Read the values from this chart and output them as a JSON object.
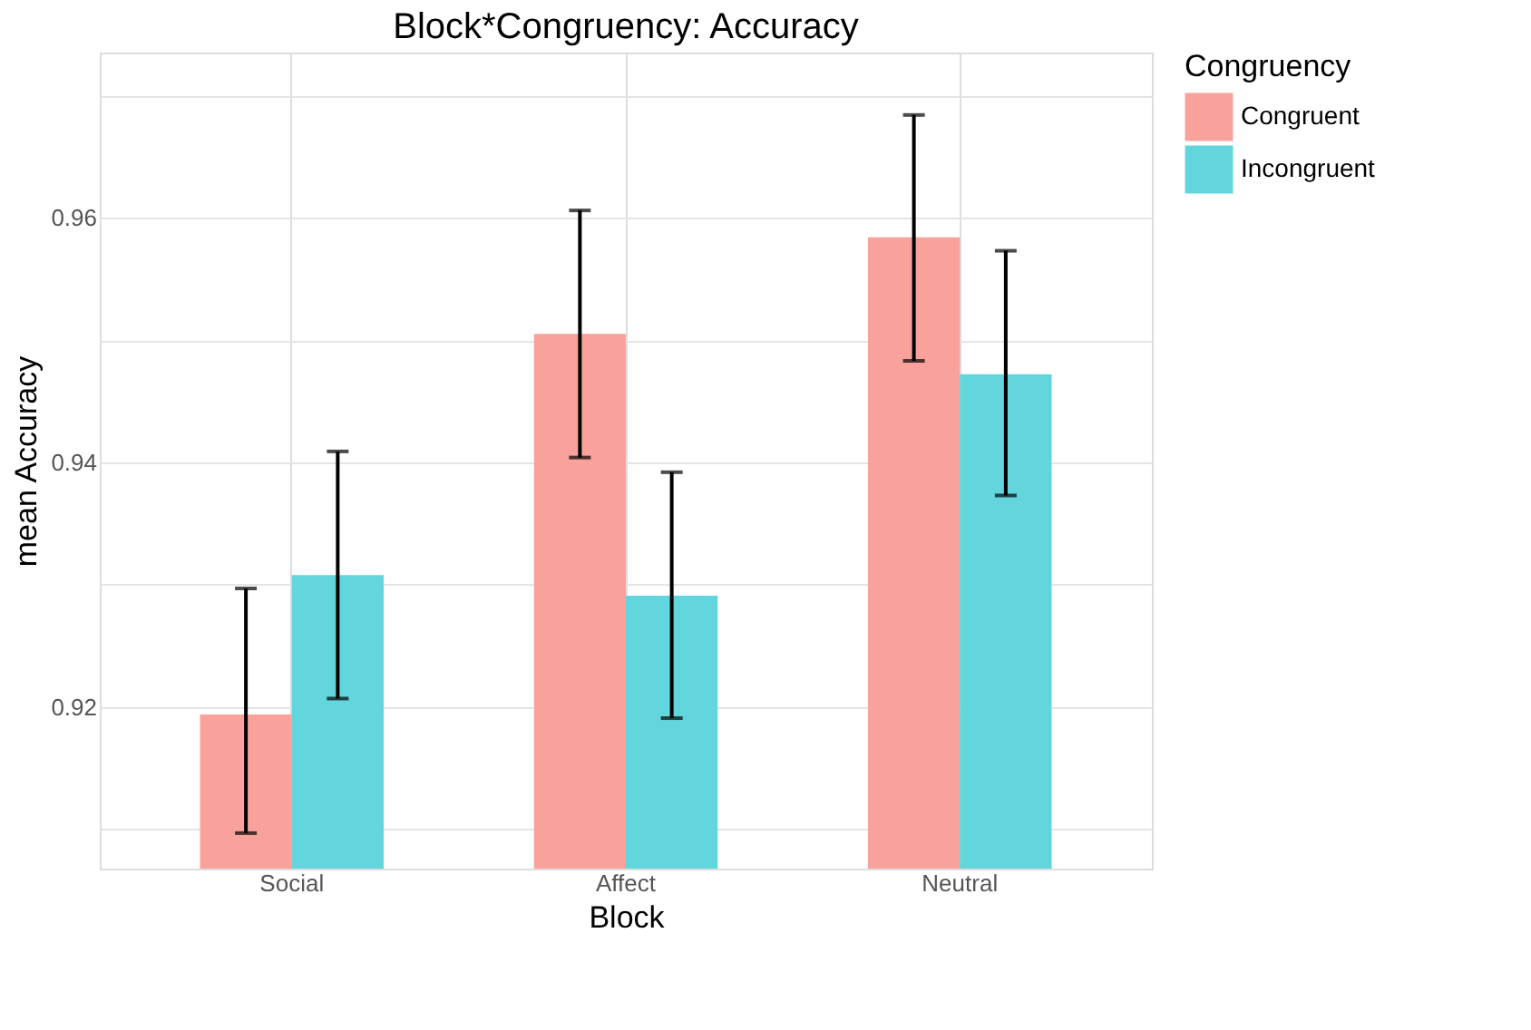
{
  "chart_data": {
    "type": "bar",
    "title": "Block*Congruency: Accuracy",
    "xlabel": "Block",
    "ylabel": "mean Accuracy",
    "legend_title": "Congruency",
    "categories": [
      "Social",
      "Affect",
      "Neutral"
    ],
    "series": [
      {
        "name": "Congruent",
        "color": "#f9a29c",
        "values": [
          0.9194,
          0.9505,
          0.9584
        ],
        "errors": [
          [
            0.9097,
            0.9297
          ],
          [
            0.9404,
            0.9606
          ],
          [
            0.9483,
            0.9684
          ]
        ]
      },
      {
        "name": "Incongruent",
        "color": "#62d6dc",
        "values": [
          0.9308,
          0.9291,
          0.9472
        ],
        "errors": [
          [
            0.9207,
            0.9409
          ],
          [
            0.9191,
            0.9392
          ],
          [
            0.9373,
            0.9573
          ]
        ]
      }
    ],
    "ylim": [
      0.9068,
      0.9735
    ],
    "yticks": [
      {
        "value": 0.91,
        "label": null
      },
      0.92,
      {
        "value": 0.93,
        "label": null
      },
      0.94,
      {
        "value": 0.95,
        "label": null
      },
      0.96,
      {
        "value": 0.97,
        "label": null
      }
    ],
    "grid": true,
    "legend": "right"
  }
}
